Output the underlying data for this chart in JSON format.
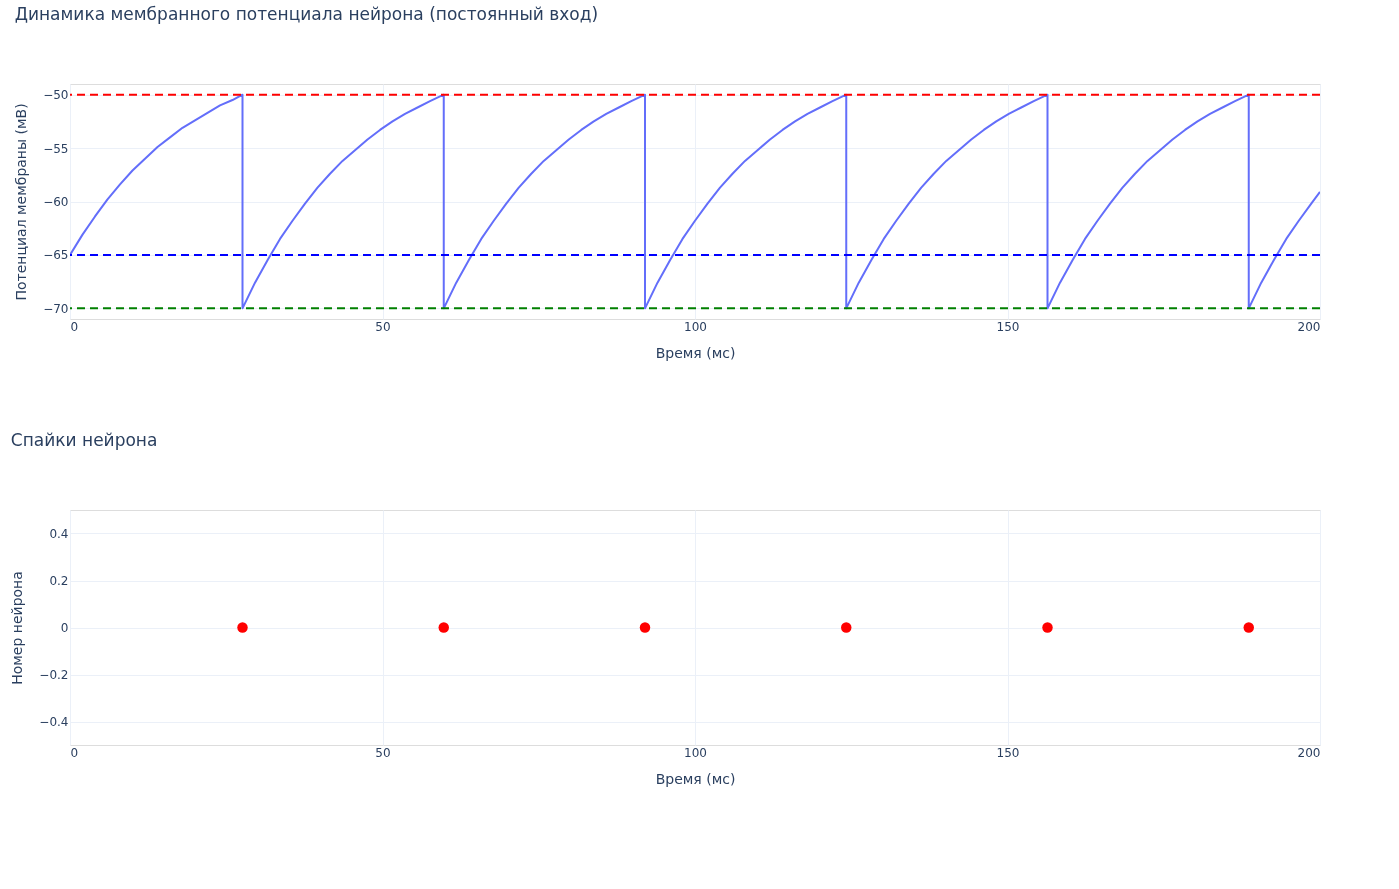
{
  "chart_data": [
    {
      "type": "line",
      "title": "Динамика мембранного потенциала нейрона (постоянный вход)",
      "xlabel": "Время (мс)",
      "ylabel": "Потенциал мембраны (мВ)",
      "series": [
        {
          "color": "#636efa",
          "x": [
            0,
            2,
            4,
            6,
            8,
            10,
            12,
            14,
            16,
            18,
            20,
            22,
            24,
            26,
            27.6,
            27.6,
            29.6,
            31.6,
            33.6,
            35.6,
            37.6,
            39.6,
            41.6,
            43.6,
            45.6,
            47.6,
            49.6,
            51.6,
            53.6,
            55.6,
            57.6,
            59.8,
            59.8,
            61.8,
            63.8,
            65.8,
            67.8,
            69.8,
            71.8,
            73.8,
            75.8,
            77.8,
            79.8,
            81.8,
            83.8,
            85.8,
            87.8,
            89.8,
            92,
            92,
            94,
            96,
            98,
            100,
            102,
            104,
            106,
            108,
            110,
            112,
            114,
            116,
            118,
            120,
            122,
            124.2,
            124.2,
            126.2,
            128.2,
            130.2,
            132.2,
            134.2,
            136.2,
            138.2,
            140.2,
            142.2,
            144.2,
            146.2,
            148.2,
            150.2,
            152.2,
            154.2,
            156.4,
            156.4,
            158.4,
            160.4,
            162.4,
            164.4,
            166.4,
            168.4,
            170.4,
            172.4,
            174.4,
            176.4,
            178.4,
            180.4,
            182.4,
            184.4,
            186.4,
            188.6,
            188.6,
            190.6,
            192.6,
            194.6,
            196.6,
            198.6,
            200
          ],
          "values": [
            -65,
            -63.1,
            -61.4,
            -59.8,
            -58.4,
            -57.1,
            -56,
            -54.9,
            -54,
            -53.1,
            -52.4,
            -51.7,
            -51,
            -50.5,
            -50,
            -70,
            -67.6,
            -65.5,
            -63.5,
            -61.8,
            -60.2,
            -58.7,
            -57.4,
            -56.2,
            -55.2,
            -54.2,
            -53.3,
            -52.5,
            -51.8,
            -51.2,
            -50.6,
            -50,
            -70,
            -67.6,
            -65.5,
            -63.5,
            -61.8,
            -60.2,
            -58.7,
            -57.4,
            -56.2,
            -55.2,
            -54.2,
            -53.3,
            -52.5,
            -51.8,
            -51.2,
            -50.6,
            -50,
            -70,
            -67.6,
            -65.5,
            -63.5,
            -61.8,
            -60.2,
            -58.7,
            -57.4,
            -56.2,
            -55.2,
            -54.2,
            -53.3,
            -52.5,
            -51.8,
            -51.2,
            -50.6,
            -50,
            -70,
            -67.6,
            -65.5,
            -63.5,
            -61.8,
            -60.2,
            -58.7,
            -57.4,
            -56.2,
            -55.2,
            -54.2,
            -53.3,
            -52.5,
            -51.8,
            -51.2,
            -50.6,
            -50,
            -70,
            -67.6,
            -65.5,
            -63.5,
            -61.8,
            -60.2,
            -58.7,
            -57.4,
            -56.2,
            -55.2,
            -54.2,
            -53.3,
            -52.5,
            -51.8,
            -51.2,
            -50.6,
            -50,
            -70,
            -67.6,
            -65.5,
            -63.5,
            -61.8,
            -60.2,
            -59.1
          ]
        }
      ],
      "xlim": [
        0,
        200
      ],
      "xticks": [
        0,
        50,
        100,
        150,
        200
      ],
      "ylim": [
        -71,
        -49
      ],
      "yticks": [
        {
          "value": -70,
          "label": "−70"
        },
        {
          "value": -65,
          "label": "−65"
        },
        {
          "value": -60,
          "label": "−60"
        },
        {
          "value": -55,
          "label": "−55"
        },
        {
          "value": -50,
          "label": "−50"
        }
      ],
      "ref_lines": [
        {
          "axis": "y",
          "value": -50,
          "color": "#ff0000",
          "line_style": "dashed"
        },
        {
          "axis": "y",
          "value": -65,
          "color": "#0000ff",
          "line_style": "dashed"
        },
        {
          "axis": "y",
          "value": -70,
          "color": "#008000",
          "line_style": "dashed"
        }
      ],
      "grid": true,
      "line_style": "solid"
    },
    {
      "type": "scatter",
      "title": "Спайки нейрона",
      "xlabel": "Время (мс)",
      "ylabel": "Номер нейрона",
      "series": [
        {
          "color": "#ff0000",
          "x": [
            27.6,
            59.8,
            92,
            124.2,
            156.4,
            188.6
          ],
          "values": [
            0,
            0,
            0,
            0,
            0,
            0
          ]
        }
      ],
      "xlim": [
        0,
        200
      ],
      "xticks": [
        0,
        50,
        100,
        150,
        200
      ],
      "ylim": [
        -0.5,
        0.5
      ],
      "yticks": [
        {
          "value": -0.4,
          "label": "−0.4"
        },
        {
          "value": -0.2,
          "label": "−0.2"
        },
        0,
        0.2,
        0.4
      ],
      "grid": true,
      "marker": "circle"
    }
  ]
}
